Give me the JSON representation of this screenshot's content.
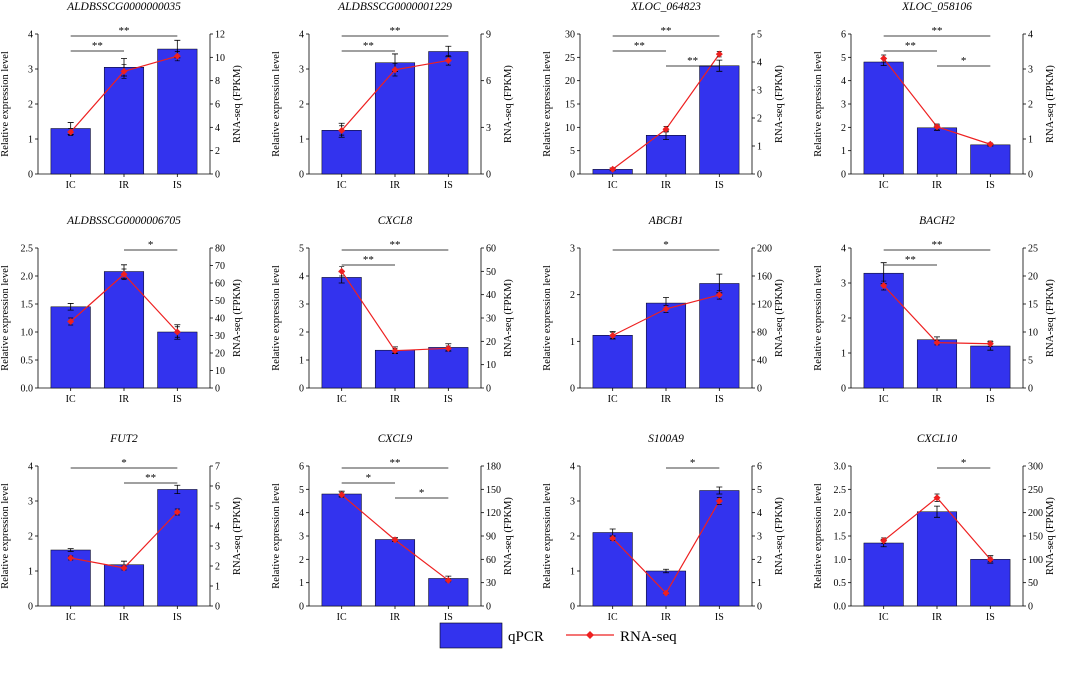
{
  "legend": {
    "qpcr_label": "qPCR",
    "rnaseq_label": "RNA-seq",
    "bar_color": "#3333ee",
    "line_color": "#ee2020"
  },
  "chart_data": [
    {
      "type": "bar",
      "title": "ALDBSSCG0000000035",
      "categories": [
        "IC",
        "IR",
        "IS"
      ],
      "ylabel": "Relative expression level",
      "y2label": "RNA-seq (FPKM)",
      "ylim": [
        0,
        4
      ],
      "yticks": [
        0,
        1,
        2,
        3,
        4
      ],
      "y2lim": [
        0,
        12
      ],
      "y2ticks": [
        0,
        2,
        4,
        6,
        8,
        10,
        12
      ],
      "series": [
        {
          "name": "qPCR",
          "values": [
            1.3,
            3.05,
            3.57
          ],
          "errors": [
            0.17,
            0.25,
            0.25
          ]
        },
        {
          "name": "RNA-seq",
          "values": [
            3.6,
            8.8,
            10.1
          ],
          "errors": [
            0.3,
            0.6,
            0.4
          ]
        }
      ],
      "significance": [
        {
          "from": 0,
          "to": 1,
          "label": "**"
        },
        {
          "from": 0,
          "to": 2,
          "label": "**"
        }
      ]
    },
    {
      "type": "bar",
      "title": "ALDBSSCG0000001229",
      "categories": [
        "IC",
        "IR",
        "IS"
      ],
      "ylabel": "Relative expression level",
      "y2label": "RNA-seq (FPKM)",
      "ylim": [
        0,
        4
      ],
      "yticks": [
        0,
        1,
        2,
        3,
        4
      ],
      "y2lim": [
        0,
        9
      ],
      "y2ticks": [
        0,
        3,
        6,
        9
      ],
      "series": [
        {
          "name": "qPCR",
          "values": [
            1.25,
            3.18,
            3.5
          ],
          "errors": [
            0.2,
            0.25,
            0.15
          ]
        },
        {
          "name": "RNA-seq",
          "values": [
            2.8,
            6.7,
            7.3
          ],
          "errors": [
            0.3,
            0.4,
            0.3
          ]
        }
      ],
      "significance": [
        {
          "from": 0,
          "to": 1,
          "label": "**"
        },
        {
          "from": 0,
          "to": 2,
          "label": "**"
        }
      ]
    },
    {
      "type": "bar",
      "title": "XLOC_064823",
      "categories": [
        "IC",
        "IR",
        "IS"
      ],
      "ylabel": "Relative expression level",
      "y2label": "RNA-seq (FPKM)",
      "ylim": [
        0,
        30
      ],
      "yticks": [
        0,
        5,
        10,
        15,
        20,
        25,
        30
      ],
      "y2lim": [
        0,
        5
      ],
      "y2ticks": [
        0,
        1,
        2,
        3,
        4,
        5
      ],
      "series": [
        {
          "name": "qPCR",
          "values": [
            1.0,
            8.3,
            23.2
          ],
          "errors": [
            0.3,
            0.9,
            1.2
          ]
        },
        {
          "name": "RNA-seq",
          "values": [
            0.17,
            1.6,
            4.28
          ],
          "errors": [
            0.05,
            0.1,
            0.1
          ]
        }
      ],
      "significance": [
        {
          "from": 0,
          "to": 1,
          "label": "**"
        },
        {
          "from": 0,
          "to": 2,
          "label": "**"
        },
        {
          "from": 1,
          "to": 2,
          "label": "**"
        }
      ]
    },
    {
      "type": "bar",
      "title": "XLOC_058106",
      "categories": [
        "IC",
        "IR",
        "IS"
      ],
      "ylabel": "Relative expression level",
      "y2label": "RNA-seq (FPKM)",
      "ylim": [
        0,
        6
      ],
      "yticks": [
        0,
        1,
        2,
        3,
        4,
        5,
        6
      ],
      "y2lim": [
        0,
        4
      ],
      "y2ticks": [
        0,
        1,
        2,
        3,
        4
      ],
      "series": [
        {
          "name": "qPCR",
          "values": [
            4.8,
            1.98,
            1.25
          ],
          "errors": [
            0.15,
            0.12,
            0.05
          ]
        },
        {
          "name": "RNA-seq",
          "values": [
            3.3,
            1.35,
            0.85
          ],
          "errors": [
            0.1,
            0.08,
            0.04
          ]
        }
      ],
      "significance": [
        {
          "from": 0,
          "to": 1,
          "label": "**"
        },
        {
          "from": 0,
          "to": 2,
          "label": "**"
        },
        {
          "from": 1,
          "to": 2,
          "label": "*"
        }
      ]
    },
    {
      "type": "bar",
      "title": "ALDBSSCG0000006705",
      "categories": [
        "IC",
        "IR",
        "IS"
      ],
      "ylabel": "Relative expression level",
      "y2label": "RNA-seq (FPKM)",
      "ylim": [
        0,
        2.5
      ],
      "yticks": [
        0,
        0.5,
        1.0,
        1.5,
        2.0,
        2.5
      ],
      "y2lim": [
        0,
        80
      ],
      "y2ticks": [
        0,
        10,
        20,
        30,
        40,
        50,
        60,
        70,
        80
      ],
      "series": [
        {
          "name": "qPCR",
          "values": [
            1.45,
            2.08,
            1.0
          ],
          "errors": [
            0.06,
            0.12,
            0.13
          ]
        },
        {
          "name": "RNA-seq",
          "values": [
            38,
            65,
            32
          ],
          "errors": [
            2,
            3,
            3
          ]
        }
      ],
      "significance": [
        {
          "from": 1,
          "to": 2,
          "label": "*"
        }
      ]
    },
    {
      "type": "bar",
      "title": "CXCL8",
      "categories": [
        "IC",
        "IR",
        "IS"
      ],
      "ylabel": "Relative expression level",
      "y2label": "RNA-seq (FPKM)",
      "ylim": [
        0,
        5
      ],
      "yticks": [
        0,
        1,
        2,
        3,
        4,
        5
      ],
      "y2lim": [
        0,
        60
      ],
      "y2ticks": [
        0,
        10,
        20,
        30,
        40,
        50,
        60
      ],
      "series": [
        {
          "name": "qPCR",
          "values": [
            3.95,
            1.35,
            1.45
          ],
          "errors": [
            0.2,
            0.12,
            0.13
          ]
        },
        {
          "name": "RNA-seq",
          "values": [
            50,
            16,
            17
          ],
          "errors": [
            2,
            1,
            1
          ]
        }
      ],
      "significance": [
        {
          "from": 0,
          "to": 1,
          "label": "**"
        },
        {
          "from": 0,
          "to": 2,
          "label": "**"
        }
      ]
    },
    {
      "type": "bar",
      "title": "ABCB1",
      "categories": [
        "IC",
        "IR",
        "IS"
      ],
      "ylabel": "Relative expression level",
      "y2label": "RNA-seq (FPKM)",
      "ylim": [
        0,
        3
      ],
      "yticks": [
        0,
        1,
        2,
        3
      ],
      "y2lim": [
        0,
        200
      ],
      "y2ticks": [
        0,
        40,
        80,
        120,
        160,
        200
      ],
      "series": [
        {
          "name": "qPCR",
          "values": [
            1.13,
            1.82,
            2.24
          ],
          "errors": [
            0.08,
            0.12,
            0.2
          ]
        },
        {
          "name": "RNA-seq",
          "values": [
            75,
            113,
            133
          ],
          "errors": [
            4,
            5,
            6
          ]
        }
      ],
      "significance": [
        {
          "from": 0,
          "to": 2,
          "label": "*"
        }
      ]
    },
    {
      "type": "bar",
      "title": "BACH2",
      "categories": [
        "IC",
        "IR",
        "IS"
      ],
      "ylabel": "Relative expression level",
      "y2label": "RNA-seq (FPKM)",
      "ylim": [
        0,
        4
      ],
      "yticks": [
        0,
        1,
        2,
        3,
        4
      ],
      "y2lim": [
        0,
        25
      ],
      "y2ticks": [
        0,
        5,
        10,
        15,
        20,
        25
      ],
      "series": [
        {
          "name": "qPCR",
          "values": [
            3.28,
            1.38,
            1.2
          ],
          "errors": [
            0.3,
            0.08,
            0.12
          ]
        },
        {
          "name": "RNA-seq",
          "values": [
            18.3,
            8.1,
            7.9
          ],
          "errors": [
            0.8,
            0.4,
            0.5
          ]
        }
      ],
      "significance": [
        {
          "from": 0,
          "to": 1,
          "label": "**"
        },
        {
          "from": 0,
          "to": 2,
          "label": "**"
        }
      ]
    },
    {
      "type": "bar",
      "title": "FUT2",
      "categories": [
        "IC",
        "IR",
        "IS"
      ],
      "ylabel": "Relative expression level",
      "y2label": "RNA-seq (FPKM)",
      "ylim": [
        0,
        4
      ],
      "yticks": [
        0,
        1,
        2,
        3,
        4
      ],
      "y2lim": [
        0,
        7
      ],
      "y2ticks": [
        0,
        1,
        2,
        3,
        4,
        5,
        6,
        7
      ],
      "series": [
        {
          "name": "qPCR",
          "values": [
            1.6,
            1.18,
            3.33
          ],
          "errors": [
            0.04,
            0.1,
            0.12
          ]
        },
        {
          "name": "RNA-seq",
          "values": [
            2.4,
            1.9,
            4.7
          ],
          "errors": [
            0.1,
            0.1,
            0.15
          ]
        }
      ],
      "significance": [
        {
          "from": 0,
          "to": 2,
          "label": "*"
        },
        {
          "from": 1,
          "to": 2,
          "label": "**"
        }
      ]
    },
    {
      "type": "bar",
      "title": "CXCL9",
      "categories": [
        "IC",
        "IR",
        "IS"
      ],
      "ylabel": "Relative expression level",
      "y2label": "RNA-seq (FPKM)",
      "ylim": [
        0,
        6
      ],
      "yticks": [
        0,
        1,
        2,
        3,
        4,
        5,
        6
      ],
      "y2lim": [
        0,
        180
      ],
      "y2ticks": [
        0,
        30,
        60,
        90,
        120,
        150,
        180
      ],
      "series": [
        {
          "name": "qPCR",
          "values": [
            4.8,
            2.85,
            1.18
          ],
          "errors": [
            0.12,
            0.08,
            0.1
          ]
        },
        {
          "name": "RNA-seq",
          "values": [
            143,
            85,
            33
          ],
          "errors": [
            3,
            2,
            2
          ]
        }
      ],
      "significance": [
        {
          "from": 0,
          "to": 1,
          "label": "*"
        },
        {
          "from": 0,
          "to": 2,
          "label": "**"
        },
        {
          "from": 1,
          "to": 2,
          "label": "*"
        }
      ]
    },
    {
      "type": "bar",
      "title": "S100A9",
      "categories": [
        "IC",
        "IR",
        "IS"
      ],
      "ylabel": "Relative expression level",
      "y2label": "RNA-seq (FPKM)",
      "ylim": [
        0,
        4
      ],
      "yticks": [
        0,
        1,
        2,
        3,
        4
      ],
      "y2lim": [
        0,
        6
      ],
      "y2ticks": [
        0,
        1,
        2,
        3,
        4,
        5,
        6
      ],
      "series": [
        {
          "name": "qPCR",
          "values": [
            2.1,
            1.0,
            3.3
          ],
          "errors": [
            0.1,
            0.05,
            0.1
          ]
        },
        {
          "name": "RNA-seq",
          "values": [
            2.9,
            0.55,
            4.5
          ],
          "errors": [
            0.1,
            0.05,
            0.15
          ]
        }
      ],
      "significance": [
        {
          "from": 1,
          "to": 2,
          "label": "*"
        }
      ]
    },
    {
      "type": "bar",
      "title": "CXCL10",
      "categories": [
        "IC",
        "IR",
        "IS"
      ],
      "ylabel": "Relative expression level",
      "y2label": "RNA-seq (FPKM)",
      "ylim": [
        0,
        3.0
      ],
      "yticks": [
        0,
        0.5,
        1.0,
        1.5,
        2.0,
        2.5,
        3.0
      ],
      "y2lim": [
        0,
        300
      ],
      "y2ticks": [
        0,
        50,
        100,
        150,
        200,
        250,
        300
      ],
      "series": [
        {
          "name": "qPCR",
          "values": [
            1.35,
            2.02,
            1.0
          ],
          "errors": [
            0.08,
            0.12,
            0.08
          ]
        },
        {
          "name": "RNA-seq",
          "values": [
            140,
            232,
            100
          ],
          "errors": [
            6,
            8,
            5
          ]
        }
      ],
      "significance": [
        {
          "from": 1,
          "to": 2,
          "label": "*"
        }
      ]
    }
  ]
}
